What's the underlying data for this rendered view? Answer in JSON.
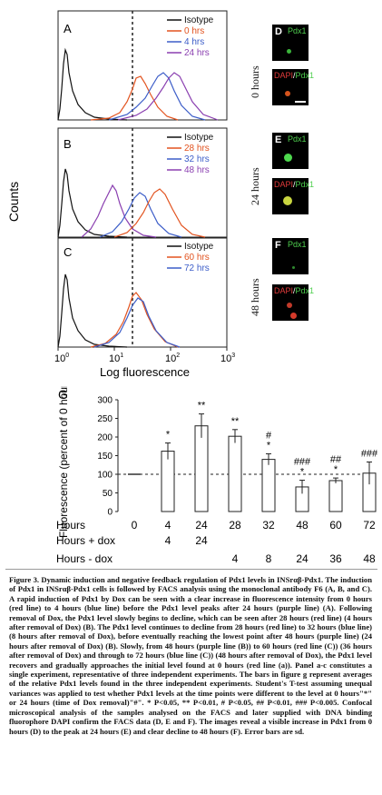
{
  "panels": [
    {
      "letter": "A",
      "legend": [
        "Isotype",
        "0 hrs",
        "4 hrs",
        "24 hrs"
      ],
      "colors": [
        "#111111",
        "#e2531f",
        "#3c5dc8",
        "#8a3fb0"
      ]
    },
    {
      "letter": "B",
      "legend": [
        "Isotype",
        "28 hrs",
        "32 hrs",
        "48 hrs"
      ],
      "colors": [
        "#111111",
        "#e2531f",
        "#3c5dc8",
        "#8a3fb0"
      ]
    },
    {
      "letter": "C",
      "legend": [
        "Isotype",
        "60 hrs",
        "72 hrs"
      ],
      "colors": [
        "#111111",
        "#e2531f",
        "#3c5dc8"
      ]
    }
  ],
  "flow": {
    "ylabel": "Counts",
    "xlabel": "Log fluorescence",
    "xticks": [
      "10",
      "10",
      "10",
      "10"
    ],
    "xtick_exponents": [
      "0",
      "1",
      "2",
      "3"
    ]
  },
  "micrographs": [
    {
      "letter": "D",
      "top_label": "Pdx1",
      "bottom_label_dapi": "DAPI",
      "bottom_label_slash": "/",
      "bottom_label_pdx": "Pdx1",
      "time": "0 hours"
    },
    {
      "letter": "E",
      "top_label": "Pdx1",
      "bottom_label_dapi": "DAPI",
      "bottom_label_slash": "/",
      "bottom_label_pdx": "Pdx1",
      "time": "24 hours"
    },
    {
      "letter": "F",
      "top_label": "Pdx1",
      "bottom_label_dapi": "DAPI",
      "bottom_label_slash": "/",
      "bottom_label_pdx": "Pdx1",
      "time": "48 hours"
    }
  ],
  "chart_data": {
    "type": "bar",
    "panel_letter": "G",
    "ylabel": "Fluorescence (percent of 0 hours)",
    "ylim": [
      0,
      300
    ],
    "yticks": [
      0,
      50,
      100,
      150,
      200,
      250,
      300
    ],
    "reference_line": 100,
    "categories": [
      "0",
      "4",
      "24",
      "28",
      "32",
      "48",
      "60",
      "72"
    ],
    "values": [
      100,
      162,
      230,
      202,
      140,
      66,
      83,
      103
    ],
    "errors": [
      0,
      22,
      32,
      18,
      15,
      18,
      7,
      30
    ],
    "significance": [
      "",
      "*",
      "**",
      "**",
      "#\n*",
      "###\n*",
      "##\n*",
      "###"
    ],
    "table": {
      "row_labels": [
        "Hours",
        "Hours + dox",
        "Hours - dox"
      ],
      "rows": [
        [
          "0",
          "4",
          "24",
          "28",
          "32",
          "48",
          "60",
          "72"
        ],
        [
          "",
          "4",
          "24",
          "",
          "",
          "",
          "",
          ""
        ],
        [
          "",
          "",
          "",
          "4",
          "8",
          "24",
          "36",
          "48"
        ]
      ]
    }
  },
  "caption": "Figure 3. Dynamic induction and negative feedback regulation of Pdx1 levels in INSrαβ-Pdx1. The induction of Pdx1 in INSrαβ-Pdx1 cells is followed by FACS analysis using the monoclonal antibody F6 (A, B, and C). A rapid induction of Pdx1 by Dox can be seen with a clear increase in fluorescence intensity from 0 hours (red line) to 4 hours (blue line) before the Pdx1 level peaks after 24 hours (purple line) (A). Following removal of Dox, the Pdx1 level slowly begins to decline, which can be seen after 28 hours (red line) (4 hours after removal of Dox) (B). The Pdx1 level continues to decline from 28 hours (red line) to 32 hours (blue line) (8 hours after removal of Dox), before eventually reaching the lowest point after 48 hours (purple line) (24 hours after removal of Dox) (B). Slowly, from 48 hours (purple line (B)) to 60 hours (red line (C)) (36 hours after removal of Dox) and through to 72 hours (blue line (C)) (48 hours after removal of Dox), the Pdx1 level recovers and gradually approaches the initial level found at 0 hours (red line (a)). Panel a-c constitutes a single experiment, representative of three independent experiments. The bars in figure g represent averages of the relative Pdx1 levels found in the three independent experiments. Student's T-test assuming unequal variances was applied to test whether Pdx1 levels at the time points were different to the level at 0 hours\"*\" or 24 hours (time of Dox removal)\"#\". * P<0.05, ** P<0.01, # P<0.05, ## P<0.01, ### P<0.005. Confocal microscopical analysis of the samples analysed on the FACS and later supplied with DNA binding fluorophore DAPI confirm the FACS data (D, E and F). The images reveal a visible increase in Pdx1 from 0 hours (D) to the peak at 24 hours (E) and clear decline to 48 hours (F). Error bars are sd."
}
